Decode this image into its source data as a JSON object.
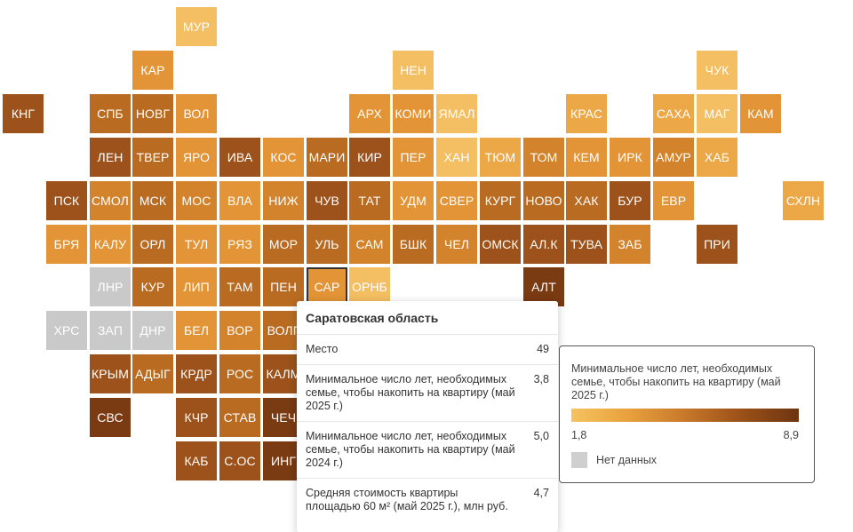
{
  "colors": {
    "a": "#f4be62",
    "b": "#eca847",
    "c": "#e39436",
    "d": "#d3832c",
    "e": "#b96b22",
    "f": "#9c521a",
    "g": "#7a3a12",
    "n": "#c9c9c9",
    "highlight_outline": "#333333"
  },
  "map": {
    "highlighted_region": "САР",
    "rows": [
      {
        "r": 0,
        "tiles": [
          {
            "c": 4,
            "label": "МУР",
            "k": "a"
          }
        ]
      },
      {
        "r": 1,
        "tiles": [
          {
            "c": 3,
            "label": "КАР",
            "k": "c"
          },
          {
            "c": 9,
            "label": "НЕН",
            "k": "a"
          },
          {
            "c": 16,
            "label": "ЧУК",
            "k": "a"
          }
        ]
      },
      {
        "r": 2,
        "tiles": [
          {
            "c": 0,
            "label": "КНГ",
            "k": "f"
          },
          {
            "c": 2,
            "label": "СПБ",
            "k": "e"
          },
          {
            "c": 3,
            "label": "НОВГ",
            "k": "e"
          },
          {
            "c": 4,
            "label": "ВОЛ",
            "k": "c"
          },
          {
            "c": 8,
            "label": "АРХ",
            "k": "c"
          },
          {
            "c": 9,
            "label": "КОМИ",
            "k": "c"
          },
          {
            "c": 10,
            "label": "ЯМАЛ",
            "k": "a"
          },
          {
            "c": 13,
            "label": "КРАС",
            "k": "b"
          },
          {
            "c": 15,
            "label": "САХА",
            "k": "b"
          },
          {
            "c": 16,
            "label": "МАГ",
            "k": "a"
          },
          {
            "c": 17,
            "label": "КАМ",
            "k": "c"
          }
        ]
      },
      {
        "r": 3,
        "tiles": [
          {
            "c": 2,
            "label": "ЛЕН",
            "k": "f"
          },
          {
            "c": 3,
            "label": "ТВЕР",
            "k": "e"
          },
          {
            "c": 4,
            "label": "ЯРО",
            "k": "c"
          },
          {
            "c": 5,
            "label": "ИВА",
            "k": "f"
          },
          {
            "c": 6,
            "label": "КОС",
            "k": "c"
          },
          {
            "c": 7,
            "label": "МАРИ",
            "k": "e"
          },
          {
            "c": 8,
            "label": "КИР",
            "k": "f"
          },
          {
            "c": 9,
            "label": "ПЕР",
            "k": "c"
          },
          {
            "c": 10,
            "label": "ХАН",
            "k": "a"
          },
          {
            "c": 11,
            "label": "ТЮМ",
            "k": "b"
          },
          {
            "c": 12,
            "label": "ТОМ",
            "k": "d"
          },
          {
            "c": 13,
            "label": "КЕМ",
            "k": "c"
          },
          {
            "c": 14,
            "label": "ИРК",
            "k": "c"
          },
          {
            "c": 15,
            "label": "АМУР",
            "k": "d"
          },
          {
            "c": 16,
            "label": "ХАБ",
            "k": "b"
          }
        ]
      },
      {
        "r": 4,
        "tiles": [
          {
            "c": 1,
            "label": "ПСК",
            "k": "f"
          },
          {
            "c": 2,
            "label": "СМОЛ",
            "k": "d"
          },
          {
            "c": 3,
            "label": "МСК",
            "k": "e"
          },
          {
            "c": 4,
            "label": "МОС",
            "k": "d"
          },
          {
            "c": 5,
            "label": "ВЛА",
            "k": "c"
          },
          {
            "c": 6,
            "label": "НИЖ",
            "k": "d"
          },
          {
            "c": 7,
            "label": "ЧУВ",
            "k": "f"
          },
          {
            "c": 8,
            "label": "ТАТ",
            "k": "e"
          },
          {
            "c": 9,
            "label": "УДМ",
            "k": "c"
          },
          {
            "c": 10,
            "label": "СВЕР",
            "k": "c"
          },
          {
            "c": 11,
            "label": "КУРГ",
            "k": "e"
          },
          {
            "c": 12,
            "label": "НОВО",
            "k": "e"
          },
          {
            "c": 13,
            "label": "ХАК",
            "k": "e"
          },
          {
            "c": 14,
            "label": "БУР",
            "k": "f"
          },
          {
            "c": 15,
            "label": "ЕВР",
            "k": "c"
          },
          {
            "c": 18,
            "label": "СХЛН",
            "k": "b"
          }
        ]
      },
      {
        "r": 5,
        "tiles": [
          {
            "c": 1,
            "label": "БРЯ",
            "k": "c"
          },
          {
            "c": 2,
            "label": "КАЛУ",
            "k": "c"
          },
          {
            "c": 3,
            "label": "ОРЛ",
            "k": "e"
          },
          {
            "c": 4,
            "label": "ТУЛ",
            "k": "c"
          },
          {
            "c": 5,
            "label": "РЯЗ",
            "k": "c"
          },
          {
            "c": 6,
            "label": "МОР",
            "k": "e"
          },
          {
            "c": 7,
            "label": "УЛЬ",
            "k": "e"
          },
          {
            "c": 8,
            "label": "САМ",
            "k": "d"
          },
          {
            "c": 9,
            "label": "БШК",
            "k": "e"
          },
          {
            "c": 10,
            "label": "ЧЕЛ",
            "k": "d"
          },
          {
            "c": 11,
            "label": "ОМСК",
            "k": "f"
          },
          {
            "c": 12,
            "label": "АЛ.К",
            "k": "f"
          },
          {
            "c": 13,
            "label": "ТУВА",
            "k": "f"
          },
          {
            "c": 14,
            "label": "ЗАБ",
            "k": "d"
          },
          {
            "c": 16,
            "label": "ПРИ",
            "k": "f"
          }
        ]
      },
      {
        "r": 6,
        "tiles": [
          {
            "c": 2,
            "label": "ЛНР",
            "k": "n"
          },
          {
            "c": 3,
            "label": "КУР",
            "k": "e"
          },
          {
            "c": 4,
            "label": "ЛИП",
            "k": "c"
          },
          {
            "c": 5,
            "label": "ТАМ",
            "k": "e"
          },
          {
            "c": 6,
            "label": "ПЕН",
            "k": "e"
          },
          {
            "c": 7,
            "label": "САР",
            "k": "c"
          },
          {
            "c": 8,
            "label": "ОРНБ",
            "k": "a"
          },
          {
            "c": 12,
            "label": "АЛТ",
            "k": "g"
          }
        ]
      },
      {
        "r": 7,
        "tiles": [
          {
            "c": 1,
            "label": "ХРС",
            "k": "n"
          },
          {
            "c": 2,
            "label": "ЗАП",
            "k": "n"
          },
          {
            "c": 3,
            "label": "ДНР",
            "k": "n"
          },
          {
            "c": 4,
            "label": "БЕЛ",
            "k": "c"
          },
          {
            "c": 5,
            "label": "ВОР",
            "k": "d"
          },
          {
            "c": 6,
            "label": "ВОЛГ",
            "k": "e"
          }
        ]
      },
      {
        "r": 8,
        "tiles": [
          {
            "c": 2,
            "label": "КРЫМ",
            "k": "f"
          },
          {
            "c": 3,
            "label": "АДЫГ",
            "k": "e"
          },
          {
            "c": 4,
            "label": "КРДР",
            "k": "f"
          },
          {
            "c": 5,
            "label": "РОС",
            "k": "e"
          },
          {
            "c": 6,
            "label": "КАЛМ",
            "k": "f"
          }
        ]
      },
      {
        "r": 9,
        "tiles": [
          {
            "c": 2,
            "label": "СВС",
            "k": "g"
          },
          {
            "c": 4,
            "label": "КЧР",
            "k": "f"
          },
          {
            "c": 5,
            "label": "СТАВ",
            "k": "e"
          },
          {
            "c": 6,
            "label": "ЧЕЧ",
            "k": "g"
          }
        ]
      },
      {
        "r": 10,
        "tiles": [
          {
            "c": 4,
            "label": "КАБ",
            "k": "f"
          },
          {
            "c": 5,
            "label": "С.ОС",
            "k": "f"
          },
          {
            "c": 6,
            "label": "ИНГ",
            "k": "g"
          }
        ]
      }
    ]
  },
  "tooltip": {
    "title": "Саратовская область",
    "rows": [
      {
        "label": "Место",
        "value": "49"
      },
      {
        "label": "Минимальное число лет, необходимых семье, чтобы накопить на квартиру (май 2025 г.)",
        "value": "3,8"
      },
      {
        "label": "Минимальное число лет, необходимых семье, чтобы накопить на квартиру (май 2024 г.)",
        "value": "5,0"
      },
      {
        "label": "Средняя стоимость квартиры площадью 60 м² (май 2025 г.), млн руб.",
        "value": "4,7"
      }
    ]
  },
  "legend": {
    "title": "Минимальное число лет, необходимых семье, чтобы накопить на квартиру (май 2025 г.)",
    "min": "1,8",
    "max": "8,9",
    "no_data_label": "Нет данных"
  }
}
